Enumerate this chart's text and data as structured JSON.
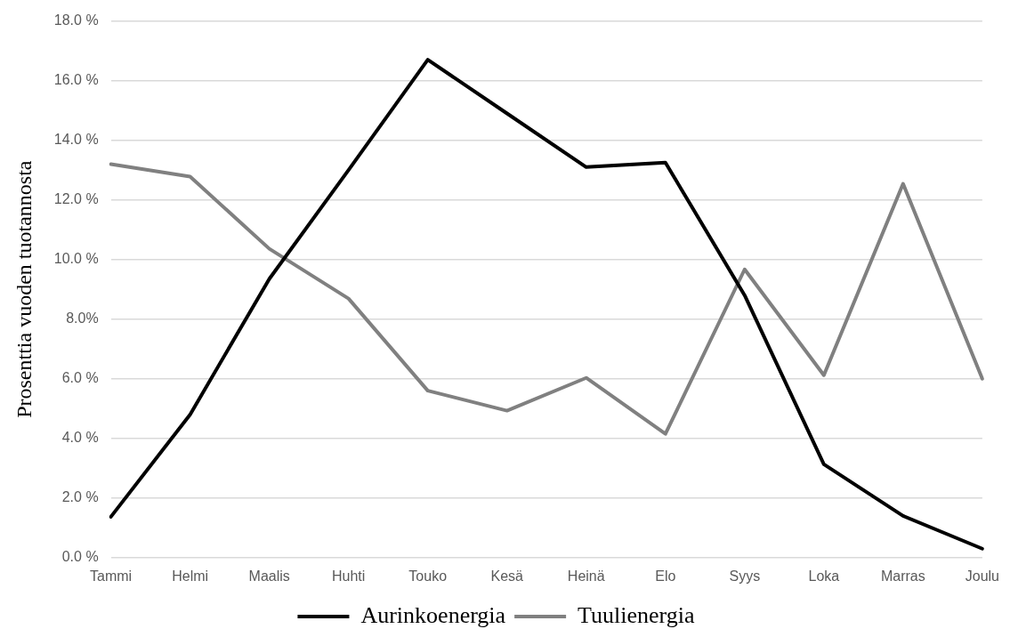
{
  "chart_data": {
    "type": "line",
    "ylabel": "Prosenttia vuoden tuotannosta",
    "categories": [
      "Tammi",
      "Helmi",
      "Maalis",
      "Huhti",
      "Touko",
      "Kesä",
      "Heinä",
      "Elo",
      "Syys",
      "Loka",
      "Marras",
      "Joulu"
    ],
    "series": [
      {
        "name": "Aurinkoenergia",
        "color": "#000000",
        "values": [
          1.37,
          4.8,
          9.35,
          13.0,
          16.7,
          14.9,
          13.1,
          13.25,
          8.8,
          3.13,
          1.4,
          0.3
        ]
      },
      {
        "name": "Tuulienergia",
        "color": "#808080",
        "values": [
          13.2,
          12.78,
          10.36,
          8.69,
          5.6,
          4.93,
          6.03,
          4.15,
          9.67,
          6.12,
          12.54,
          6.0
        ]
      }
    ],
    "ylim": [
      0,
      18
    ],
    "yticks": [
      {
        "value": 0,
        "label": "0.0 %"
      },
      {
        "value": 2,
        "label": "2.0 %"
      },
      {
        "value": 4,
        "label": "4.0 %"
      },
      {
        "value": 6,
        "label": "6.0 %"
      },
      {
        "value": 8,
        "label": "8.0%"
      },
      {
        "value": 10,
        "label": "10.0 %"
      },
      {
        "value": 12,
        "label": "12.0 %"
      },
      {
        "value": 14,
        "label": "14.0 %"
      },
      {
        "value": 16,
        "label": "16.0 %"
      },
      {
        "value": 18,
        "label": "18.0 %"
      }
    ],
    "grid": "y",
    "legend": "bottom",
    "marker": "none",
    "line_style": "solid"
  }
}
